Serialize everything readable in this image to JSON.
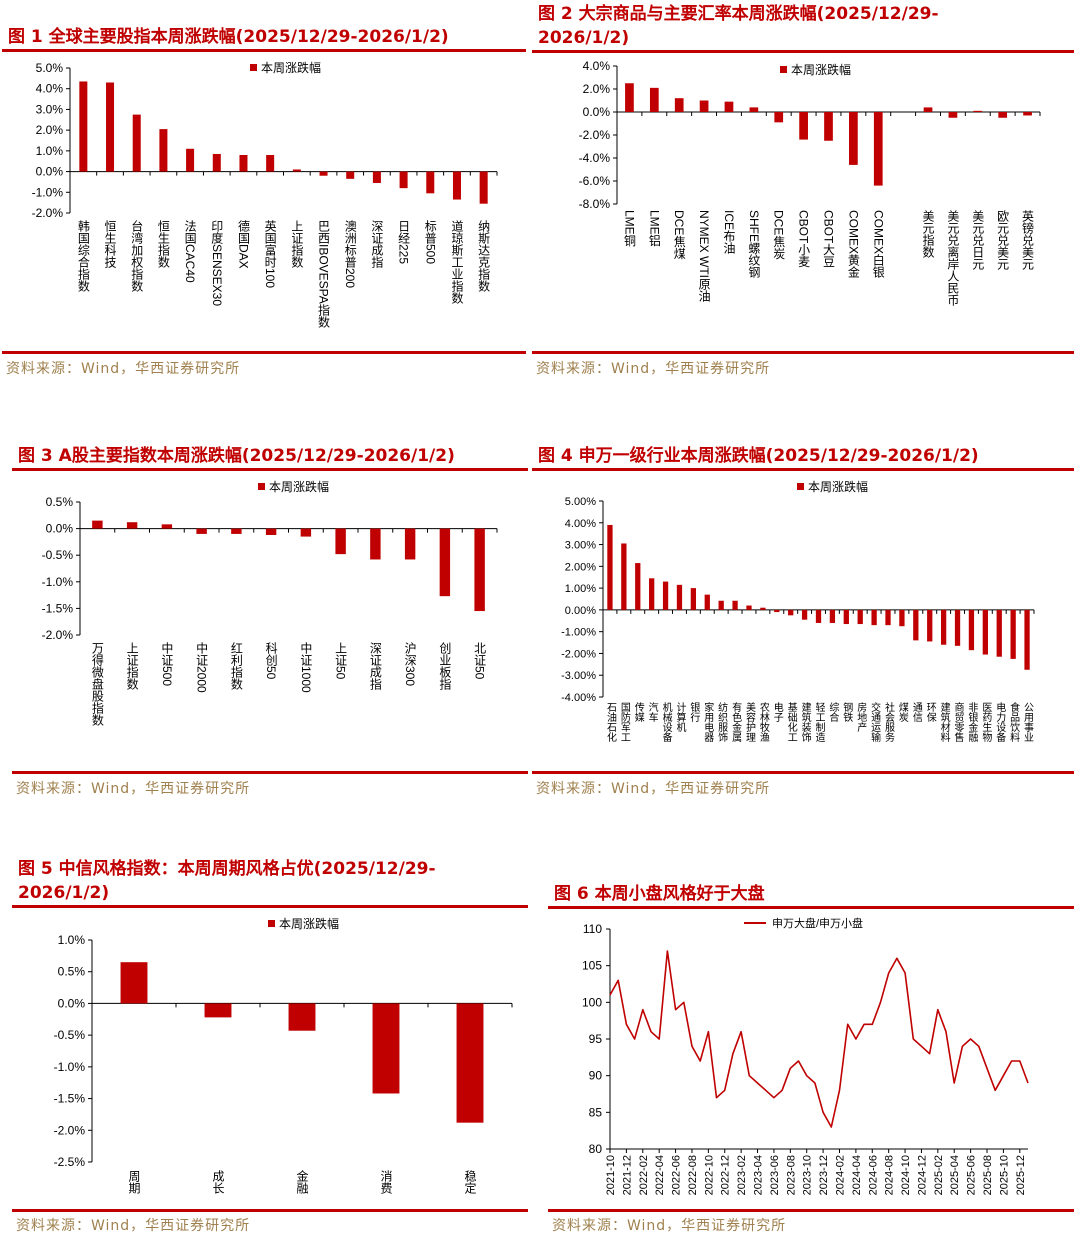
{
  "chart_data": [
    {
      "type": "bar",
      "title": "图 1  全球主要股指本周涨跌幅(2025/12/29-2026/1/2)",
      "legend": "本周涨跌幅",
      "source": "资料来源：Wind，华西证券研究所",
      "categories": [
        "韩国综合指数",
        "恒生科技",
        "台湾加权指数",
        "恒生指数",
        "法国CAC40",
        "印度SENSEX30",
        "德国DAX",
        "英国富时100",
        "上证指数",
        "巴西IBOVESPA指数",
        "澳洲标普200",
        "深证成指",
        "日经225",
        "标普500",
        "道琼斯工业指数",
        "纳斯达克指数"
      ],
      "values": [
        4.35,
        4.3,
        2.75,
        2.05,
        1.1,
        0.85,
        0.8,
        0.8,
        0.1,
        -0.2,
        -0.35,
        -0.55,
        -0.8,
        -1.05,
        -1.35,
        -1.55
      ],
      "ylim": [
        -2,
        5
      ],
      "yticks": [
        5,
        4,
        3,
        2,
        1,
        0,
        -1,
        -2
      ],
      "ytick_labels": [
        "5.0%",
        "4.0%",
        "3.0%",
        "2.0%",
        "1.0%",
        "0.0%",
        "-1.0%",
        "-2.0%"
      ],
      "color": "#c00000"
    },
    {
      "type": "bar",
      "title": "图 2  大宗商品与主要汇率本周涨跌幅(2025/12/29-2026/1/2)",
      "legend": "本周涨跌幅",
      "source": "资料来源：Wind，华西证券研究所",
      "categories": [
        "LME铜",
        "LME铝",
        "DCE焦煤",
        "NYMEX WTI原油",
        "ICE布油",
        "SHFE螺纹钢",
        "DCE焦炭",
        "CBOT小麦",
        "CBOT大豆",
        "COMEX黄金",
        "COMEX白银",
        "",
        "美元指数",
        "美元兑离岸人民币",
        "美元兑日元",
        "欧元兑美元",
        "英镑兑美元"
      ],
      "values": [
        2.5,
        2.1,
        1.2,
        1.0,
        0.9,
        0.4,
        -0.9,
        -2.4,
        -2.5,
        -4.6,
        -6.4,
        null,
        0.4,
        -0.5,
        0.1,
        -0.5,
        -0.3
      ],
      "ylim": [
        -8,
        4
      ],
      "yticks": [
        4,
        2,
        0,
        -2,
        -4,
        -6,
        -8
      ],
      "ytick_labels": [
        "4.0%",
        "2.0%",
        "0.0%",
        "-2.0%",
        "-4.0%",
        "-6.0%",
        "-8.0%"
      ],
      "color": "#c00000"
    },
    {
      "type": "bar",
      "title": "图 3 A股主要指数本周涨跌幅(2025/12/29-2026/1/2)",
      "legend": "本周涨跌幅",
      "source": "资料来源：Wind，华西证券研究所",
      "categories": [
        "万得微盘股指数",
        "上证指数",
        "中证500",
        "中证2000",
        "红利指数",
        "科创50",
        "中证1000",
        "上证50",
        "深证成指",
        "沪深300",
        "创业板指",
        "北证50"
      ],
      "values": [
        0.15,
        0.12,
        0.08,
        -0.1,
        -0.1,
        -0.12,
        -0.15,
        -0.48,
        -0.58,
        -0.58,
        -1.27,
        -1.55
      ],
      "ylim": [
        -2,
        0.5
      ],
      "yticks": [
        0.5,
        0,
        -0.5,
        -1,
        -1.5,
        -2
      ],
      "ytick_labels": [
        "0.5%",
        "0.0%",
        "-0.5%",
        "-1.0%",
        "-1.5%",
        "-2.0%"
      ],
      "color": "#c00000"
    },
    {
      "type": "bar",
      "title": "图 4  申万一级行业本周涨跌幅(2025/12/29-2026/1/2)",
      "legend": "本周涨跌幅",
      "source": "资料来源：Wind，华西证券研究所",
      "categories": [
        "石油石化",
        "国防军工",
        "传媒",
        "汽车",
        "机械设备",
        "计算机",
        "银行",
        "家用电器",
        "纺织服饰",
        "有色金属",
        "美容护理",
        "农林牧渔",
        "电子",
        "基础化工",
        "建筑装饰",
        "轻工制造",
        "综合",
        "钢铁",
        "房地产",
        "交通运输",
        "社会服务",
        "煤炭",
        "通信",
        "环保",
        "建筑材料",
        "商贸零售",
        "非银金融",
        "医药生物",
        "电力设备",
        "食品饮料",
        "公用事业"
      ],
      "values": [
        3.9,
        3.05,
        2.15,
        1.45,
        1.3,
        1.15,
        1.0,
        0.7,
        0.42,
        0.42,
        0.2,
        0.1,
        -0.1,
        -0.25,
        -0.45,
        -0.6,
        -0.6,
        -0.65,
        -0.65,
        -0.7,
        -0.7,
        -0.75,
        -1.4,
        -1.45,
        -1.6,
        -1.65,
        -1.85,
        -2.05,
        -2.15,
        -2.25,
        -2.75
      ],
      "ylim": [
        -4,
        5
      ],
      "yticks": [
        5,
        4,
        3,
        2,
        1,
        0,
        -1,
        -2,
        -3,
        -4
      ],
      "ytick_labels": [
        "5.00%",
        "4.00%",
        "3.00%",
        "2.00%",
        "1.00%",
        "0.00%",
        "-1.00%",
        "-2.00%",
        "-3.00%",
        "-4.00%"
      ],
      "color": "#c00000"
    },
    {
      "type": "bar",
      "title": "图 5  中信风格指数：本周周期风格占优(2025/12/29-2026/1/2)",
      "legend": "本周涨跌幅",
      "source": "资料来源：Wind，华西证券研究所",
      "categories": [
        "周期",
        "成长",
        "金融",
        "消费",
        "稳定"
      ],
      "values": [
        0.65,
        -0.22,
        -0.43,
        -1.42,
        -1.88
      ],
      "ylim": [
        -2.5,
        1
      ],
      "yticks": [
        1,
        0.5,
        0,
        -0.5,
        -1,
        -1.5,
        -2,
        -2.5
      ],
      "ytick_labels": [
        "1.0%",
        "0.5%",
        "0.0%",
        "-0.5%",
        "-1.0%",
        "-1.5%",
        "-2.0%",
        "-2.5%"
      ],
      "color": "#c00000"
    },
    {
      "type": "line",
      "title": "图 6  本周小盘风格好于大盘",
      "legend": "申万大盘/申万小盘",
      "source": "资料来源：Wind，华西证券研究所",
      "x": [
        "2021-10",
        "2021-11",
        "2021-12",
        "2022-01",
        "2022-02",
        "2022-03",
        "2022-04",
        "2022-05",
        "2022-06",
        "2022-07",
        "2022-08",
        "2022-09",
        "2022-10",
        "2022-11",
        "2022-12",
        "2023-01",
        "2023-02",
        "2023-03",
        "2023-04",
        "2023-05",
        "2023-06",
        "2023-07",
        "2023-08",
        "2023-09",
        "2023-10",
        "2023-11",
        "2023-12",
        "2024-01",
        "2024-02",
        "2024-03",
        "2024-04",
        "2024-05",
        "2024-06",
        "2024-07",
        "2024-08",
        "2024-09",
        "2024-10",
        "2024-11",
        "2024-12",
        "2025-01",
        "2025-02",
        "2025-03",
        "2025-04",
        "2025-05",
        "2025-06",
        "2025-07",
        "2025-08",
        "2025-09",
        "2025-10",
        "2025-11",
        "2025-12",
        "2026-01"
      ],
      "values": [
        101,
        103,
        97,
        95,
        99,
        96,
        95,
        107,
        99,
        100,
        94,
        92,
        96,
        87,
        88,
        93,
        96,
        90,
        89,
        88,
        87,
        88,
        91,
        92,
        90,
        89,
        85,
        83,
        88,
        97,
        95,
        97,
        97,
        100,
        104,
        106,
        104,
        95,
        94,
        93,
        99,
        96,
        89,
        94,
        95,
        94,
        91,
        88,
        90,
        92,
        92,
        89
      ],
      "xtick_labels": [
        "2021-10",
        "2021-12",
        "2022-02",
        "2022-04",
        "2022-06",
        "2022-08",
        "2022-10",
        "2022-12",
        "2023-02",
        "2023-04",
        "2023-06",
        "2023-08",
        "2023-10",
        "2023-12",
        "2024-02",
        "2024-04",
        "2024-06",
        "2024-08",
        "2024-10",
        "2024-12",
        "2025-02",
        "2025-04",
        "2025-06",
        "2025-08",
        "2025-10",
        "2025-12"
      ],
      "ylim": [
        80,
        110
      ],
      "yticks": [
        110,
        105,
        100,
        95,
        90,
        85,
        80
      ],
      "ytick_labels": [
        "110",
        "105",
        "100",
        "95",
        "90",
        "85",
        "80"
      ],
      "color": "#c00000"
    }
  ]
}
